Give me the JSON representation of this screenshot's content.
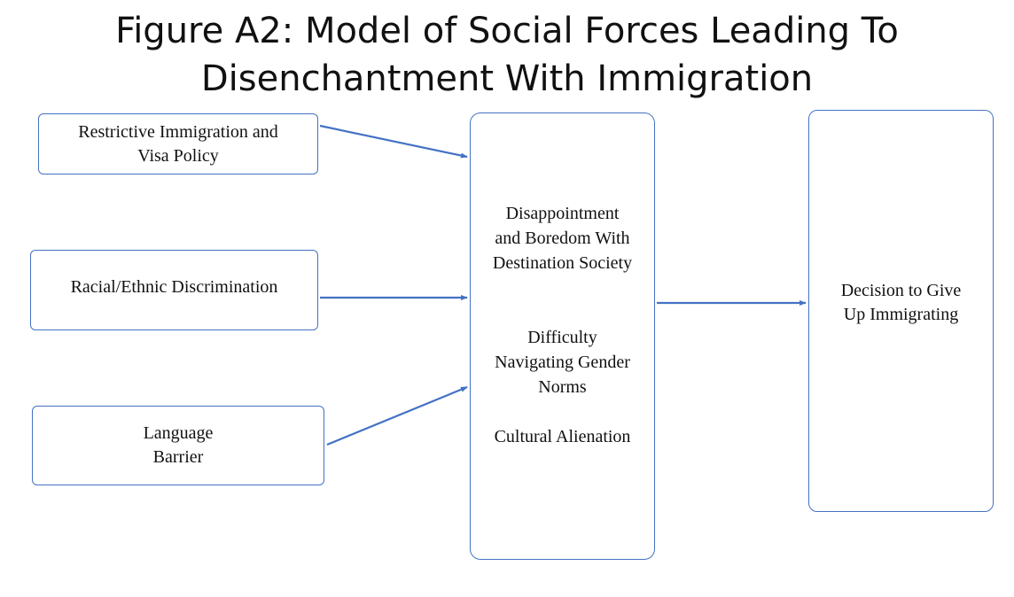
{
  "title": {
    "line1": "Figure A2: Model of Social Forces Leading To",
    "line2": "Disenchantment With Immigration"
  },
  "inputs": [
    {
      "line1": "Restrictive Immigration and",
      "line2": "Visa Policy"
    },
    {
      "line1": "Racial/Ethnic Discrimination"
    },
    {
      "line1": "Language",
      "line2": "Barrier"
    }
  ],
  "middle": {
    "group1": [
      "Disappointment",
      "and Boredom With",
      "Destination Society"
    ],
    "group2": [
      "Difficulty",
      "Navigating Gender",
      "Norms"
    ],
    "group3": [
      "Cultural Alienation"
    ]
  },
  "outcome": {
    "line1": "Decision to Give",
    "line2": "Up Immigrating"
  },
  "colors": {
    "arrow": "#4472c4",
    "border": "#4472c4",
    "text": "#111111"
  }
}
